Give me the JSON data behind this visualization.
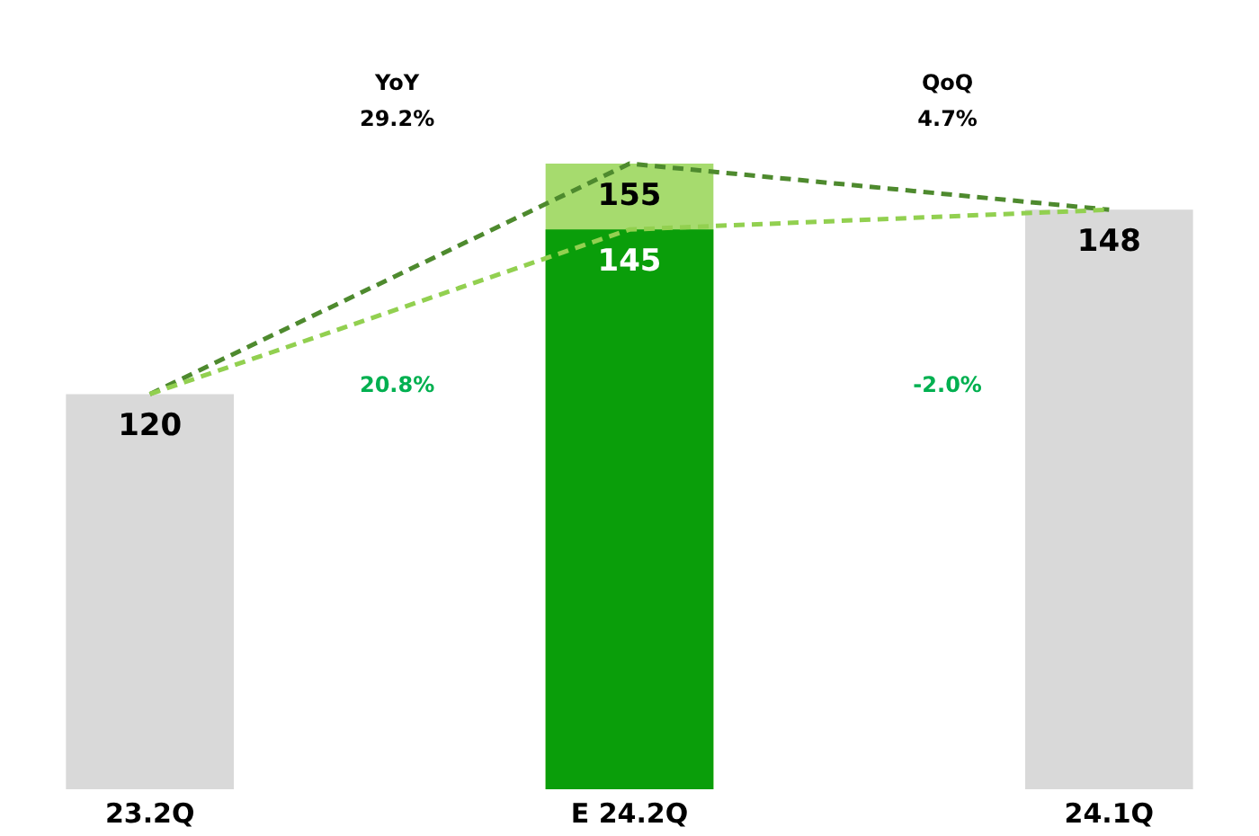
{
  "chart_data": {
    "type": "bar",
    "categories": [
      "23.2Q",
      "E 24.2Q",
      "24.1Q"
    ],
    "tick_labels": "x",
    "series": [
      {
        "color": "#a6db6e",
        "values": [
          null,
          155,
          null
        ],
        "value_labels": [
          null,
          "155",
          null
        ]
      },
      {
        "colors": [
          "#d9d9d9",
          "#0a9e0a",
          "#d9d9d9"
        ],
        "values": [
          120,
          145,
          148
        ],
        "value_labels": [
          "120",
          "145",
          "148"
        ]
      },
      {
        "type": "line",
        "color": "#4e8a2e",
        "line_style": "dashed",
        "values": [
          120,
          155,
          148
        ]
      },
      {
        "type": "line",
        "color": "#92d050",
        "line_style": "dashed",
        "values": [
          120,
          145,
          148
        ]
      }
    ],
    "annotations": [
      "YoY",
      "29.2%",
      "QoQ",
      "4.7%",
      "20.8%",
      "-2.0%"
    ]
  }
}
